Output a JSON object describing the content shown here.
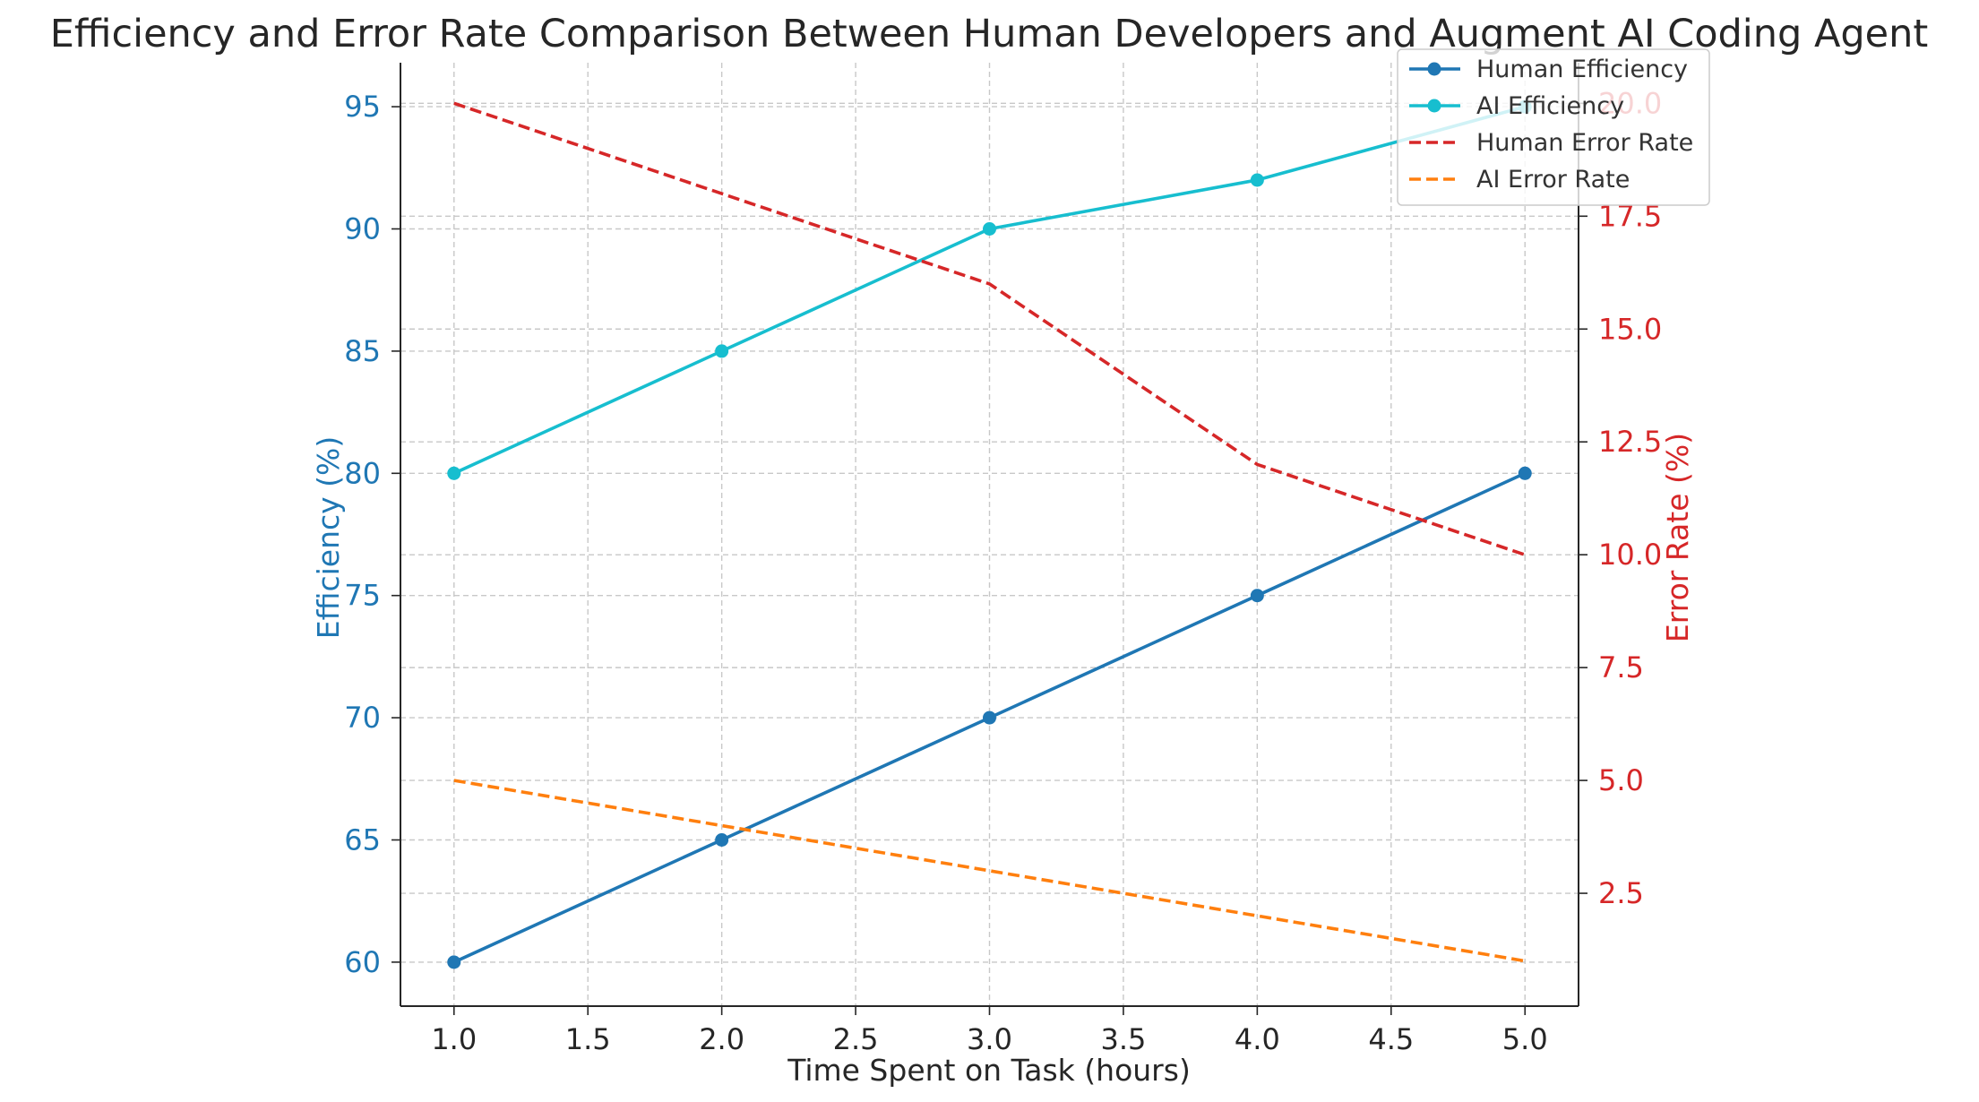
{
  "chart_data": {
    "type": "line",
    "title": "Efficiency and Error Rate Comparison Between Human Developers and Augment AI Coding Agent",
    "xlabel": "Time Spent on Task (hours)",
    "ylabel_left": "Efficiency (%)",
    "ylabel_right": "Error Rate (%)",
    "x": [
      1.0,
      2.0,
      3.0,
      4.0,
      5.0
    ],
    "xlim": [
      0.8,
      5.2
    ],
    "ylim_left": [
      58.2,
      96.8
    ],
    "ylim_right": [
      0.0,
      20.9
    ],
    "x_ticks": [
      "1.0",
      "1.5",
      "2.0",
      "2.5",
      "3.0",
      "3.5",
      "4.0",
      "4.5",
      "5.0"
    ],
    "y_left_ticks": [
      "60",
      "65",
      "70",
      "75",
      "80",
      "85",
      "90",
      "95"
    ],
    "y_right_ticks": [
      "2.5",
      "5.0",
      "7.5",
      "10.0",
      "12.5",
      "15.0",
      "17.5",
      "20.0"
    ],
    "grid": true,
    "legend_position": "top-right",
    "series": [
      {
        "name": "Human Efficiency",
        "axis": "left",
        "values": [
          60,
          65,
          70,
          75,
          80
        ],
        "color": "#1f77b4",
        "style": "solid",
        "marker": "circle"
      },
      {
        "name": "AI Efficiency",
        "axis": "left",
        "values": [
          80,
          85,
          90,
          92,
          95
        ],
        "color": "#17becf",
        "style": "solid",
        "marker": "circle"
      },
      {
        "name": "Human Error Rate",
        "axis": "right",
        "values": [
          20,
          18,
          16,
          12,
          10
        ],
        "color": "#d62728",
        "style": "dashed",
        "marker": "none"
      },
      {
        "name": "AI Error Rate",
        "axis": "right",
        "values": [
          5,
          4,
          3,
          2,
          1
        ],
        "color": "#ff7f0e",
        "style": "dashed",
        "marker": "none"
      }
    ],
    "colors": {
      "left_axis": "#1f77b4",
      "right_axis": "#d62728",
      "text": "#262626",
      "grid": "#c8c8c8"
    }
  }
}
